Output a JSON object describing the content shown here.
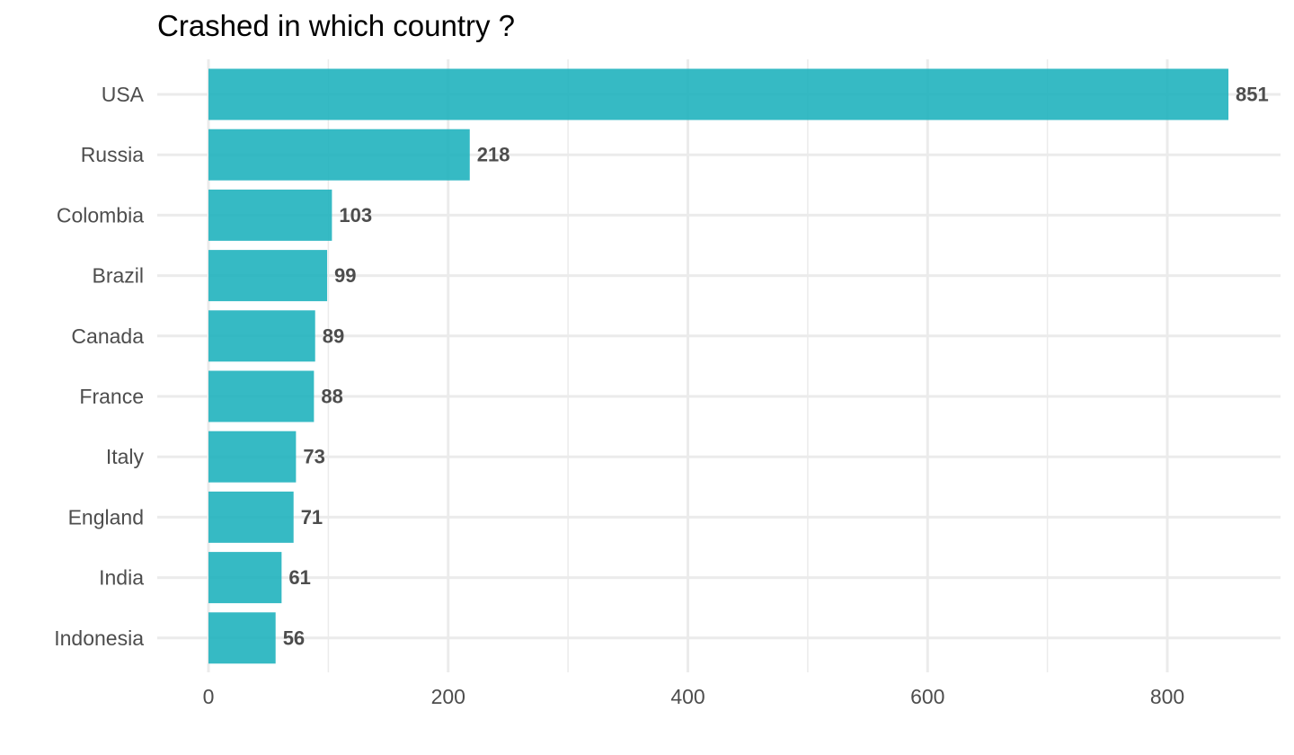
{
  "chart_data": {
    "type": "bar",
    "orientation": "horizontal",
    "title": "Crashed in which country ?",
    "xlabel": "",
    "ylabel": "",
    "categories": [
      "USA",
      "Russia",
      "Colombia",
      "Brazil",
      "Canada",
      "France",
      "Italy",
      "England",
      "India",
      "Indonesia"
    ],
    "values": [
      851,
      218,
      103,
      99,
      89,
      88,
      73,
      71,
      61,
      56
    ],
    "xlim": [
      0,
      900
    ],
    "x_ticks": [
      0,
      200,
      400,
      600,
      800
    ],
    "bar_color": "#20b2be",
    "grid": true,
    "data_labels": true
  }
}
